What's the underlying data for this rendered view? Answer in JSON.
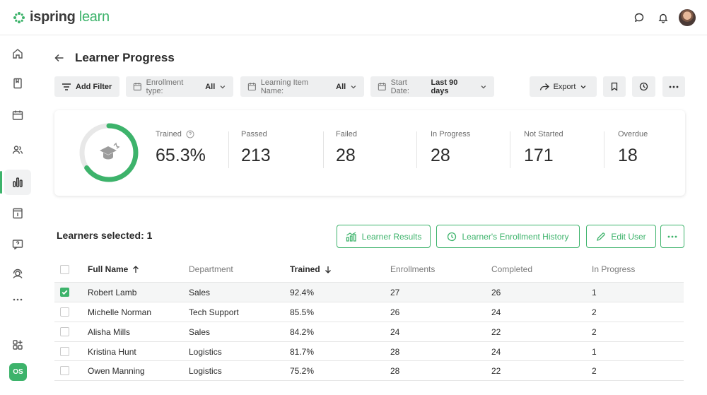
{
  "app": {
    "logo_main": "ispring",
    "logo_accent": " learn"
  },
  "header": {
    "title": "Learner Progress"
  },
  "filters": {
    "add_filter": "Add Filter",
    "enrollment": {
      "label": "Enrollment type:",
      "value": "All"
    },
    "item_name": {
      "label": "Learning Item Name:",
      "value": "All"
    },
    "start_date": {
      "label": "Start Date:",
      "value": "Last 90 days"
    },
    "export": "Export"
  },
  "stats": {
    "trained": {
      "label": "Trained",
      "value": "65.3%",
      "fraction": 0.653
    },
    "passed": {
      "label": "Passed",
      "value": "213"
    },
    "failed": {
      "label": "Failed",
      "value": "28"
    },
    "in_progress": {
      "label": "In Progress",
      "value": "28"
    },
    "not_started": {
      "label": "Not Started",
      "value": "171"
    },
    "overdue": {
      "label": "Overdue",
      "value": "18"
    }
  },
  "selection": {
    "label": "Learners selected: 1"
  },
  "actions": {
    "learner_results": "Learner Results",
    "enrollment_history": "Learner's Enrollment History",
    "edit_user": "Edit User"
  },
  "table": {
    "columns": [
      "Full Name",
      "Department",
      "Trained",
      "Enrollments",
      "Completed",
      "In Progress"
    ],
    "rows": [
      {
        "name": "Robert Lamb",
        "department": "Sales",
        "trained": "92.4%",
        "enrollments": "27",
        "completed": "26",
        "in_progress": "1",
        "selected": true
      },
      {
        "name": "Michelle Norman",
        "department": "Tech Support",
        "trained": "85.5%",
        "enrollments": "26",
        "completed": "24",
        "in_progress": "2",
        "selected": false
      },
      {
        "name": "Alisha Mills",
        "department": "Sales",
        "trained": "84.2%",
        "enrollments": "24",
        "completed": "22",
        "in_progress": "2",
        "selected": false
      },
      {
        "name": "Kristina Hunt",
        "department": "Logistics",
        "trained": "81.7%",
        "enrollments": "28",
        "completed": "24",
        "in_progress": "1",
        "selected": false
      },
      {
        "name": "Owen Manning",
        "department": "Logistics",
        "trained": "75.2%",
        "enrollments": "28",
        "completed": "22",
        "in_progress": "2",
        "selected": false
      }
    ]
  },
  "sidebar": {
    "user_initials": "OS"
  },
  "colors": {
    "accent": "#3db36b",
    "ring_track": "#e8e8e8"
  }
}
